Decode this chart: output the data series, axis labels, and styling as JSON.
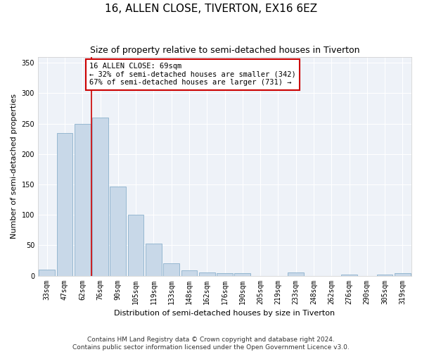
{
  "title": "16, ALLEN CLOSE, TIVERTON, EX16 6EZ",
  "subtitle": "Size of property relative to semi-detached houses in Tiverton",
  "xlabel": "Distribution of semi-detached houses by size in Tiverton",
  "ylabel": "Number of semi-detached properties",
  "categories": [
    "33sqm",
    "47sqm",
    "62sqm",
    "76sqm",
    "90sqm",
    "105sqm",
    "119sqm",
    "133sqm",
    "148sqm",
    "162sqm",
    "176sqm",
    "190sqm",
    "205sqm",
    "219sqm",
    "233sqm",
    "248sqm",
    "262sqm",
    "276sqm",
    "290sqm",
    "305sqm",
    "319sqm"
  ],
  "values": [
    10,
    235,
    250,
    260,
    147,
    100,
    53,
    20,
    9,
    5,
    4,
    4,
    0,
    0,
    5,
    0,
    0,
    2,
    0,
    2,
    4
  ],
  "bar_color": "#c8d8e8",
  "bar_edge_color": "#8ab0cc",
  "vline_x": 2.5,
  "annotation_text": "16 ALLEN CLOSE: 69sqm\n← 32% of semi-detached houses are smaller (342)\n67% of semi-detached houses are larger (731) →",
  "vline_color": "#cc0000",
  "annotation_box_color": "#ffffff",
  "annotation_box_edge": "#cc0000",
  "footer": "Contains HM Land Registry data © Crown copyright and database right 2024.\nContains public sector information licensed under the Open Government Licence v3.0.",
  "ylim": [
    0,
    360
  ],
  "yticks": [
    0,
    50,
    100,
    150,
    200,
    250,
    300,
    350
  ],
  "bg_color": "#eef2f8",
  "grid_color": "#ffffff",
  "title_fontsize": 11,
  "subtitle_fontsize": 9,
  "axis_label_fontsize": 8,
  "tick_fontsize": 7,
  "annotation_fontsize": 7.5,
  "footer_fontsize": 6.5
}
